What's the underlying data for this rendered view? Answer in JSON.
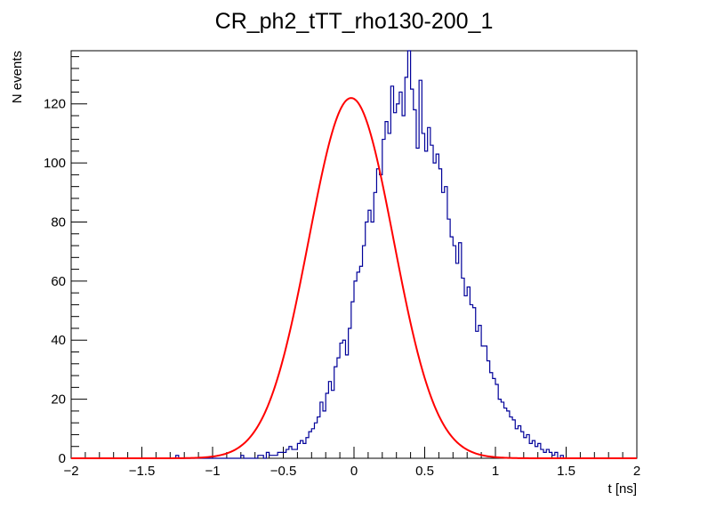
{
  "chart_data": {
    "type": "histogram",
    "title": "CR_ph2_tTT_rho130-200_1",
    "xlabel": "t [ns]",
    "ylabel": "N events",
    "xlim": [
      -2,
      2
    ],
    "ylim": [
      0,
      138
    ],
    "x_ticks": [
      -2,
      -1.5,
      -1,
      -0.5,
      0,
      0.5,
      1,
      1.5,
      2
    ],
    "x_tick_labels": [
      "−2",
      "−1.5",
      "−1",
      "−0.5",
      "0",
      "0.5",
      "1",
      "1.5",
      "2"
    ],
    "y_ticks": [
      0,
      20,
      40,
      60,
      80,
      100,
      120
    ],
    "y_tick_labels": [
      "0",
      "20",
      "40",
      "60",
      "80",
      "100",
      "120"
    ],
    "grid": false,
    "legend": "none",
    "histogram": {
      "color": "#000099",
      "bin_width": 0.02,
      "x_start": -2,
      "values": [
        0,
        0,
        0,
        0,
        0,
        0,
        0,
        0,
        0,
        0,
        0,
        0,
        0,
        0,
        0,
        0,
        0,
        0,
        0,
        0,
        0,
        0,
        0,
        0,
        0,
        0,
        0,
        0,
        0,
        0,
        0,
        0,
        0,
        0,
        0,
        0,
        0,
        1,
        0,
        0,
        0,
        0,
        0,
        0,
        0,
        0,
        0,
        0,
        0,
        0,
        0,
        0,
        0,
        0,
        0,
        0,
        0,
        0,
        0,
        0,
        1,
        0,
        0,
        0,
        0,
        0,
        1,
        1,
        0,
        2,
        1,
        1,
        1,
        2,
        2,
        2,
        3,
        4,
        3,
        3,
        5,
        6,
        5,
        7,
        9,
        10,
        12,
        14,
        19,
        16,
        22,
        26,
        23,
        31,
        34,
        39,
        40,
        35,
        44,
        53,
        60,
        63,
        65,
        72,
        80,
        84,
        80,
        90,
        98,
        96,
        108,
        114,
        110,
        126,
        117,
        120,
        124,
        116,
        129,
        138,
        125,
        118,
        105,
        128,
        110,
        104,
        112,
        106,
        100,
        103,
        98,
        90,
        92,
        81,
        75,
        72,
        66,
        73,
        61,
        55,
        58,
        52,
        51,
        43,
        45,
        38,
        38,
        33,
        29,
        27,
        25,
        20,
        19,
        17,
        16,
        14,
        13,
        10,
        11,
        9,
        7,
        8,
        5,
        6,
        4,
        5,
        3,
        2,
        3,
        2,
        1,
        2,
        0,
        1,
        0,
        0,
        0,
        0,
        0,
        0,
        0,
        0,
        0,
        0,
        0,
        0,
        0,
        0,
        0,
        0,
        0,
        0,
        0,
        0,
        0,
        0,
        0,
        0,
        0,
        0
      ]
    },
    "fit": {
      "function": "gaussian",
      "color": "#ff0000",
      "amplitude": 122,
      "mean": -0.02,
      "sigma": 0.3
    }
  }
}
